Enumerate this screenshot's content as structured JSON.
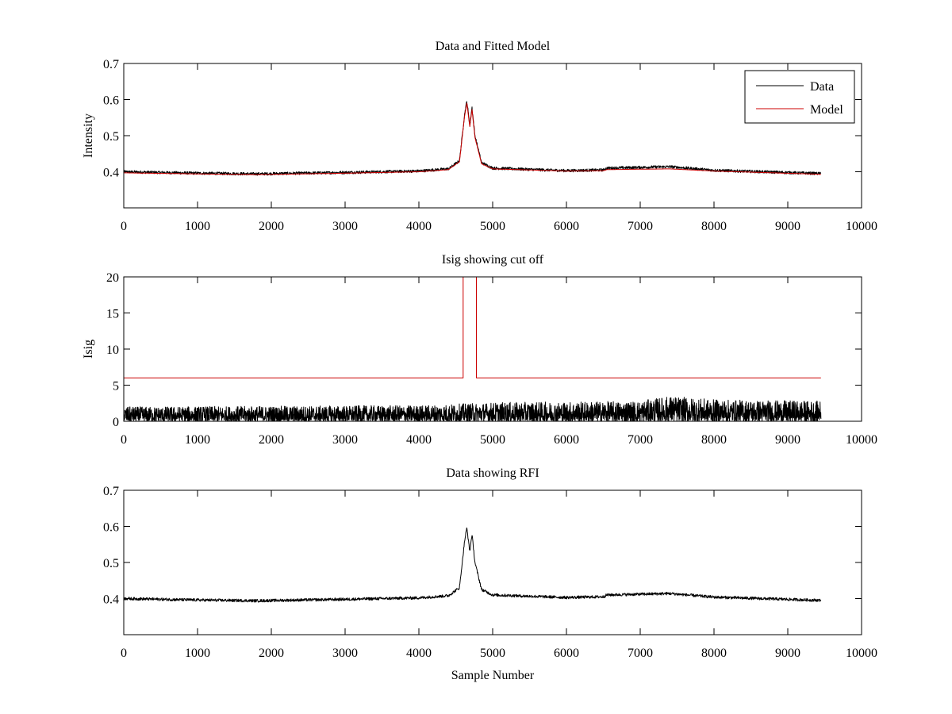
{
  "chart_data": [
    {
      "type": "line",
      "title": "Data and Fitted Model",
      "xlabel": "",
      "ylabel": "Intensity",
      "xlim": [
        0,
        10000
      ],
      "ylim": [
        0.3,
        0.7
      ],
      "xticks": [
        0,
        1000,
        2000,
        3000,
        4000,
        5000,
        6000,
        7000,
        8000,
        9000,
        10000
      ],
      "yticks": [
        0.4,
        0.5,
        0.6,
        0.7
      ],
      "grid": false,
      "legend_position": "top-right",
      "series": [
        {
          "name": "Data",
          "color": "#000000",
          "x_range": [
            0,
            9450
          ],
          "baseline": [
            [
              0,
              0.4
            ],
            [
              1000,
              0.396
            ],
            [
              1800,
              0.394
            ],
            [
              3000,
              0.398
            ],
            [
              4000,
              0.402
            ],
            [
              4400,
              0.408
            ],
            [
              4550,
              0.43
            ],
            [
              4620,
              0.56
            ],
            [
              4650,
              0.596
            ],
            [
              4690,
              0.53
            ],
            [
              4720,
              0.578
            ],
            [
              4760,
              0.5
            ],
            [
              4850,
              0.425
            ],
            [
              5000,
              0.41
            ],
            [
              6000,
              0.403
            ],
            [
              6500,
              0.405
            ],
            [
              6550,
              0.41
            ],
            [
              7400,
              0.414
            ],
            [
              8000,
              0.404
            ],
            [
              9450,
              0.395
            ]
          ],
          "noise_amplitude": 0.004
        },
        {
          "name": "Model",
          "color": "#cc0000",
          "x_range": [
            0,
            9450
          ],
          "baseline": [
            [
              0,
              0.397
            ],
            [
              1000,
              0.394
            ],
            [
              1800,
              0.392
            ],
            [
              3000,
              0.396
            ],
            [
              4000,
              0.4
            ],
            [
              4400,
              0.406
            ],
            [
              4550,
              0.428
            ],
            [
              4620,
              0.555
            ],
            [
              4650,
              0.59
            ],
            [
              4690,
              0.525
            ],
            [
              4720,
              0.572
            ],
            [
              4760,
              0.495
            ],
            [
              4850,
              0.422
            ],
            [
              5000,
              0.408
            ],
            [
              6000,
              0.402
            ],
            [
              6500,
              0.403
            ],
            [
              6550,
              0.406
            ],
            [
              7400,
              0.408
            ],
            [
              8000,
              0.402
            ],
            [
              9450,
              0.393
            ]
          ],
          "noise_amplitude": 0
        }
      ]
    },
    {
      "type": "line",
      "title": "Isig showing cut off",
      "xlabel": "",
      "ylabel": "Isig",
      "xlim": [
        0,
        10000
      ],
      "ylim": [
        0,
        20
      ],
      "xticks": [
        0,
        1000,
        2000,
        3000,
        4000,
        5000,
        6000,
        7000,
        8000,
        9000,
        10000
      ],
      "yticks": [
        0,
        5,
        10,
        15,
        20
      ],
      "grid": false,
      "series": [
        {
          "name": "Isig",
          "color": "#000000",
          "x_range": [
            0,
            9450
          ],
          "envelope": [
            [
              0,
              2.0
            ],
            [
              4000,
              2.2
            ],
            [
              5000,
              2.6
            ],
            [
              7000,
              2.8
            ],
            [
              7400,
              3.5
            ],
            [
              8000,
              3.0
            ],
            [
              9450,
              2.8
            ]
          ]
        },
        {
          "name": "Cut off",
          "color": "#cc0000",
          "points": [
            [
              0,
              6
            ],
            [
              4600,
              6
            ],
            [
              4600,
              20
            ],
            [
              4780,
              20
            ],
            [
              4780,
              6
            ],
            [
              9450,
              6
            ]
          ]
        }
      ]
    },
    {
      "type": "line",
      "title": "Data showing RFI",
      "xlabel": "Sample Number",
      "ylabel": "",
      "xlim": [
        0,
        10000
      ],
      "ylim": [
        0.3,
        0.7
      ],
      "xticks": [
        0,
        1000,
        2000,
        3000,
        4000,
        5000,
        6000,
        7000,
        8000,
        9000,
        10000
      ],
      "yticks": [
        0.4,
        0.5,
        0.6,
        0.7
      ],
      "grid": false,
      "series": [
        {
          "name": "Data",
          "color": "#000000",
          "x_range": [
            0,
            9450
          ],
          "baseline": [
            [
              0,
              0.4
            ],
            [
              1000,
              0.396
            ],
            [
              1800,
              0.394
            ],
            [
              3000,
              0.398
            ],
            [
              4000,
              0.402
            ],
            [
              4400,
              0.408
            ],
            [
              4550,
              0.43
            ],
            [
              4620,
              0.56
            ],
            [
              4650,
              0.596
            ],
            [
              4690,
              0.53
            ],
            [
              4720,
              0.578
            ],
            [
              4760,
              0.5
            ],
            [
              4850,
              0.425
            ],
            [
              5000,
              0.41
            ],
            [
              6000,
              0.403
            ],
            [
              6500,
              0.405
            ],
            [
              6550,
              0.41
            ],
            [
              7400,
              0.414
            ],
            [
              8000,
              0.404
            ],
            [
              9450,
              0.395
            ]
          ],
          "noise_amplitude": 0.004
        }
      ]
    }
  ]
}
